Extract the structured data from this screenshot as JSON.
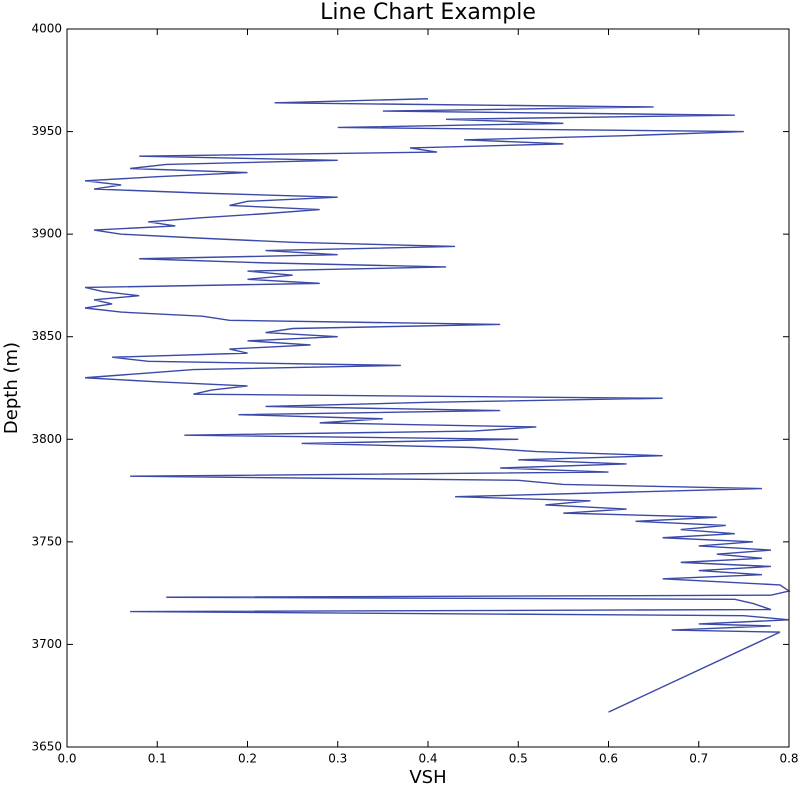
{
  "chart_data": {
    "type": "line",
    "title": "Line Chart Example",
    "x_label": "VSH",
    "y_label": "Depth (m)",
    "color": "#3b4aa8",
    "xlim": [
      0,
      0.8
    ],
    "xticks": [
      {
        "value": 0,
        "label": "0.0"
      },
      0.1,
      0.2,
      0.3,
      0.4,
      0.5,
      0.6,
      0.7,
      0.8
    ],
    "ylim": [
      3650,
      4000
    ],
    "yticks": [
      3650,
      3700,
      3750,
      3800,
      3850,
      3900,
      3950,
      4000
    ],
    "x": [
      0.6,
      0.79,
      0.67,
      0.78,
      0.7,
      0.8,
      0.75,
      0.07,
      0.78,
      0.76,
      0.74,
      0.11,
      0.78,
      0.8,
      0.79,
      0.66,
      0.77,
      0.7,
      0.78,
      0.68,
      0.77,
      0.72,
      0.78,
      0.7,
      0.76,
      0.66,
      0.74,
      0.68,
      0.73,
      0.63,
      0.72,
      0.55,
      0.62,
      0.53,
      0.58,
      0.43,
      0.6,
      0.77,
      0.55,
      0.5,
      0.07,
      0.6,
      0.48,
      0.62,
      0.5,
      0.66,
      0.52,
      0.45,
      0.26,
      0.5,
      0.13,
      0.45,
      0.52,
      0.28,
      0.35,
      0.19,
      0.48,
      0.22,
      0.4,
      0.66,
      0.14,
      0.16,
      0.2,
      0.1,
      0.02,
      0.08,
      0.14,
      0.37,
      0.09,
      0.05,
      0.2,
      0.18,
      0.27,
      0.2,
      0.3,
      0.22,
      0.25,
      0.48,
      0.18,
      0.15,
      0.06,
      0.02,
      0.05,
      0.03,
      0.08,
      0.04,
      0.02,
      0.28,
      0.2,
      0.25,
      0.2,
      0.42,
      0.22,
      0.08,
      0.3,
      0.22,
      0.43,
      0.25,
      0.15,
      0.06,
      0.03,
      0.12,
      0.09,
      0.15,
      0.22,
      0.28,
      0.18,
      0.2,
      0.3,
      0.15,
      0.03,
      0.06,
      0.02,
      0.1,
      0.2,
      0.07,
      0.11,
      0.3,
      0.08,
      0.41,
      0.38,
      0.55,
      0.44,
      0.62,
      0.75,
      0.3,
      0.55,
      0.42,
      0.74,
      0.35,
      0.65,
      0.23,
      0.4
    ],
    "values": [
      3667,
      3706,
      3707,
      3709,
      3710,
      3712,
      3714,
      3716,
      3717,
      3720,
      3722,
      3723,
      3724,
      3726,
      3729,
      3732,
      3734,
      3736,
      3738,
      3740,
      3742,
      3744,
      3746,
      3748,
      3750,
      3752,
      3754,
      3756,
      3758,
      3760,
      3762,
      3764,
      3766,
      3768,
      3770,
      3772,
      3774,
      3776,
      3778,
      3780,
      3782,
      3784,
      3786,
      3788,
      3790,
      3792,
      3794,
      3796,
      3798,
      3800,
      3802,
      3804,
      3806,
      3808,
      3810,
      3812,
      3814,
      3816,
      3818,
      3820,
      3822,
      3824,
      3826,
      3828,
      3830,
      3832,
      3834,
      3836,
      3838,
      3840,
      3842,
      3844,
      3846,
      3848,
      3850,
      3852,
      3854,
      3856,
      3858,
      3860,
      3862,
      3864,
      3866,
      3868,
      3870,
      3872,
      3874,
      3876,
      3878,
      3880,
      3882,
      3884,
      3886,
      3888,
      3890,
      3892,
      3894,
      3896,
      3898,
      3900,
      3902,
      3904,
      3906,
      3908,
      3910,
      3912,
      3914,
      3916,
      3918,
      3920,
      3922,
      3924,
      3926,
      3928,
      3930,
      3932,
      3934,
      3936,
      3938,
      3940,
      3942,
      3944,
      3946,
      3948,
      3950,
      3952,
      3954,
      3956,
      3958,
      3960,
      3962,
      3964,
      3966
    ]
  }
}
